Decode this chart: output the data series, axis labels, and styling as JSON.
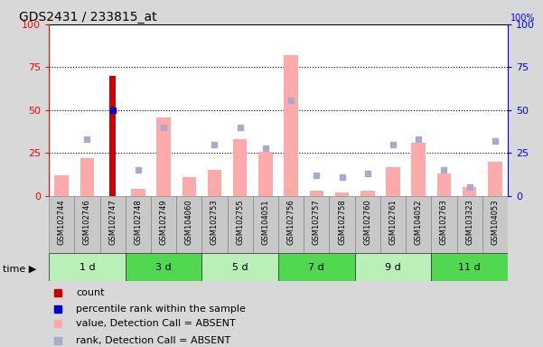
{
  "title": "GDS2431 / 233815_at",
  "samples": [
    "GSM102744",
    "GSM102746",
    "GSM102747",
    "GSM102748",
    "GSM102749",
    "GSM104060",
    "GSM102753",
    "GSM102755",
    "GSM104051",
    "GSM102756",
    "GSM102757",
    "GSM102758",
    "GSM102760",
    "GSM102761",
    "GSM104052",
    "GSM102763",
    "GSM103323",
    "GSM104053"
  ],
  "time_groups": [
    {
      "label": "1 d",
      "start": 0,
      "end": 3,
      "color": "#b8f0b8"
    },
    {
      "label": "3 d",
      "start": 3,
      "end": 6,
      "color": "#50d850"
    },
    {
      "label": "5 d",
      "start": 6,
      "end": 9,
      "color": "#b8f0b8"
    },
    {
      "label": "7 d",
      "start": 9,
      "end": 12,
      "color": "#50d850"
    },
    {
      "label": "9 d",
      "start": 12,
      "end": 15,
      "color": "#b8f0b8"
    },
    {
      "label": "11 d",
      "start": 15,
      "end": 18,
      "color": "#50d850"
    }
  ],
  "count_values": [
    0,
    0,
    70,
    0,
    0,
    0,
    0,
    0,
    0,
    0,
    0,
    0,
    0,
    0,
    0,
    0,
    0,
    0
  ],
  "percentile_values": [
    0,
    0,
    50,
    0,
    0,
    0,
    0,
    0,
    0,
    0,
    0,
    0,
    0,
    0,
    0,
    0,
    0,
    0
  ],
  "value_absent": [
    12,
    22,
    0,
    4,
    46,
    11,
    15,
    33,
    26,
    82,
    3,
    2,
    3,
    17,
    31,
    13,
    5,
    20
  ],
  "rank_absent": [
    0,
    33,
    0,
    15,
    40,
    0,
    30,
    40,
    28,
    56,
    12,
    11,
    13,
    30,
    33,
    15,
    5,
    32
  ],
  "ylim": [
    0,
    100
  ],
  "yticks": [
    0,
    25,
    50,
    75,
    100
  ],
  "count_color": "#cc0000",
  "percentile_color": "#0000cc",
  "value_absent_color": "#ffaaaa",
  "rank_absent_color": "#aaaacc",
  "bg_color": "#d8d8d8",
  "plot_bg_color": "#ffffff",
  "legend_items": [
    {
      "label": "count",
      "color": "#cc0000"
    },
    {
      "label": "percentile rank within the sample",
      "color": "#0000cc"
    },
    {
      "label": "value, Detection Call = ABSENT",
      "color": "#ffaaaa"
    },
    {
      "label": "rank, Detection Call = ABSENT",
      "color": "#aaaacc"
    }
  ]
}
